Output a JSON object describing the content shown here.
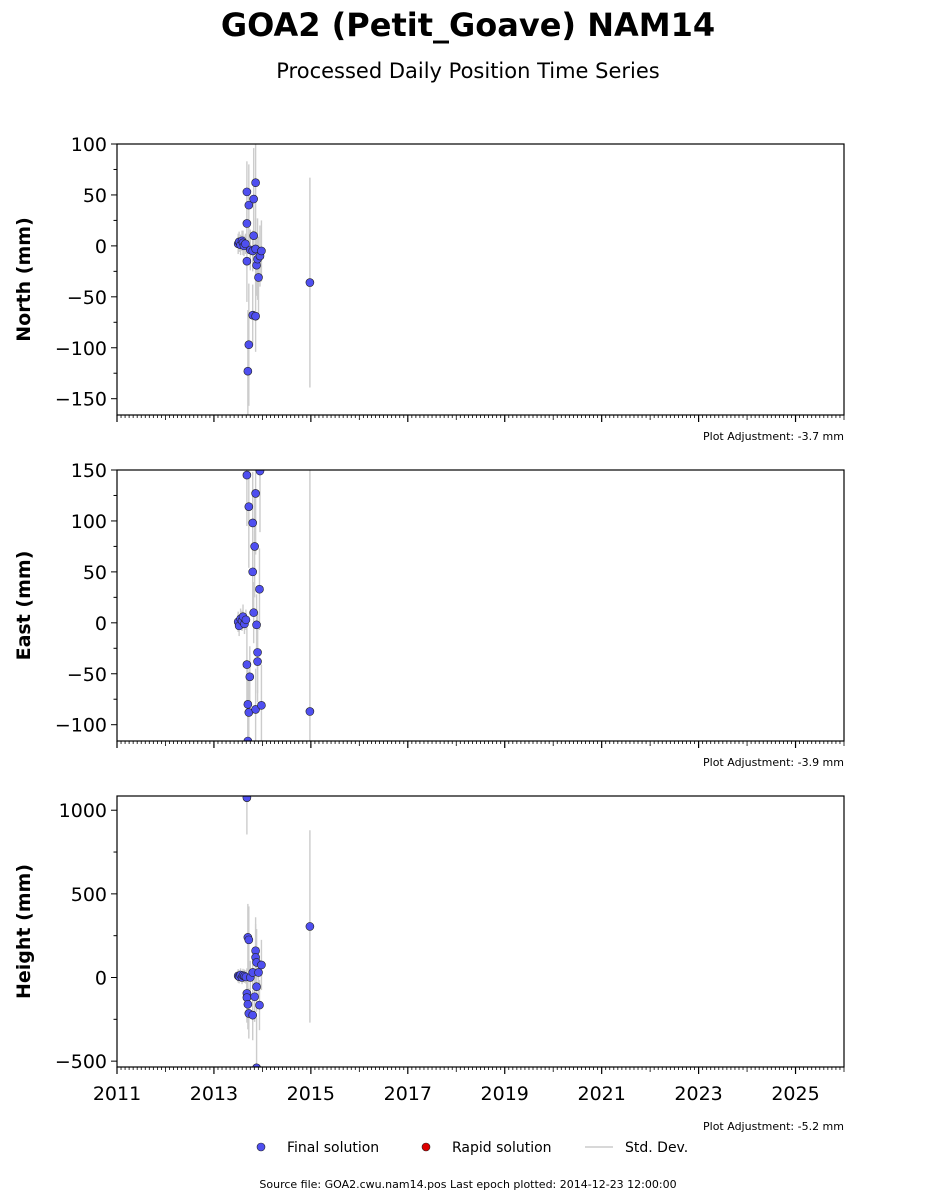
{
  "title": "GOA2 (Petit_Goave) NAM14",
  "subtitle": "Processed Daily Position Time Series",
  "footer": "Source file: GOA2.cwu.nam14.pos  Last epoch plotted: 2014-12-23 12:00:00",
  "legend": {
    "final": "Final solution",
    "rapid": "Rapid solution",
    "std": "Std. Dev."
  },
  "colors": {
    "final": "#4f4ff0",
    "rapid": "#dd0000",
    "std": "#cccccc"
  },
  "chart_data": [
    {
      "type": "scatter",
      "ylabel": "North (mm)",
      "adjustment": "Plot Adjustment: -3.7 mm",
      "xlim": [
        2011,
        2026
      ],
      "ylim": [
        -166,
        100
      ],
      "yticks": [
        100,
        50,
        0,
        -50,
        -100,
        -150
      ],
      "xticks": [
        2011,
        2013,
        2015,
        2017,
        2019,
        2021,
        2023,
        2025
      ],
      "show_xticklabels": false,
      "points": [
        {
          "x": 2013.5,
          "y": 2,
          "err": 10
        },
        {
          "x": 2013.52,
          "y": 4,
          "err": 10
        },
        {
          "x": 2013.55,
          "y": 1,
          "err": 10
        },
        {
          "x": 2013.58,
          "y": 5,
          "err": 10
        },
        {
          "x": 2013.6,
          "y": 3,
          "err": 12
        },
        {
          "x": 2013.62,
          "y": 0,
          "err": 10
        },
        {
          "x": 2013.65,
          "y": 2,
          "err": 10
        },
        {
          "x": 2013.68,
          "y": 53,
          "err": 30
        },
        {
          "x": 2013.68,
          "y": 22,
          "err": 30
        },
        {
          "x": 2013.68,
          "y": -15,
          "err": 40
        },
        {
          "x": 2013.7,
          "y": -123,
          "err": 60
        },
        {
          "x": 2013.72,
          "y": -97,
          "err": 60
        },
        {
          "x": 2013.72,
          "y": 40,
          "err": 40
        },
        {
          "x": 2013.75,
          "y": -4,
          "err": 20
        },
        {
          "x": 2013.8,
          "y": -68,
          "err": 30
        },
        {
          "x": 2013.8,
          "y": -5,
          "err": 20
        },
        {
          "x": 2013.82,
          "y": 10,
          "err": 25
        },
        {
          "x": 2013.82,
          "y": 46,
          "err": 50
        },
        {
          "x": 2013.86,
          "y": -69,
          "err": 35
        },
        {
          "x": 2013.86,
          "y": 62,
          "err": 60
        },
        {
          "x": 2013.86,
          "y": -3,
          "err": 30
        },
        {
          "x": 2013.88,
          "y": -19,
          "err": 30
        },
        {
          "x": 2013.9,
          "y": -13,
          "err": 40
        },
        {
          "x": 2013.92,
          "y": -31,
          "err": 40
        },
        {
          "x": 2013.95,
          "y": -10,
          "err": 30
        },
        {
          "x": 2013.98,
          "y": -5,
          "err": 30
        },
        {
          "x": 2014.98,
          "y": -36,
          "err": 103
        }
      ]
    },
    {
      "type": "scatter",
      "ylabel": "East (mm)",
      "adjustment": "Plot Adjustment: -3.9 mm",
      "xlim": [
        2011,
        2026
      ],
      "ylim": [
        -116,
        150
      ],
      "yticks": [
        150,
        100,
        50,
        0,
        -50,
        -100
      ],
      "xticks": [
        2011,
        2013,
        2015,
        2017,
        2019,
        2021,
        2023,
        2025
      ],
      "show_xticklabels": false,
      "points": [
        {
          "x": 2013.5,
          "y": 1,
          "err": 10
        },
        {
          "x": 2013.52,
          "y": -3,
          "err": 10
        },
        {
          "x": 2013.55,
          "y": 4,
          "err": 10
        },
        {
          "x": 2013.58,
          "y": 2,
          "err": 10
        },
        {
          "x": 2013.6,
          "y": 6,
          "err": 12
        },
        {
          "x": 2013.63,
          "y": -1,
          "err": 10
        },
        {
          "x": 2013.66,
          "y": 3,
          "err": 10
        },
        {
          "x": 2013.68,
          "y": 145,
          "err": 50
        },
        {
          "x": 2013.68,
          "y": -41,
          "err": 40
        },
        {
          "x": 2013.7,
          "y": -80,
          "err": 40
        },
        {
          "x": 2013.7,
          "y": -116,
          "err": 50
        },
        {
          "x": 2013.72,
          "y": 114,
          "err": 60
        },
        {
          "x": 2013.72,
          "y": -88,
          "err": 40
        },
        {
          "x": 2013.74,
          "y": -53,
          "err": 30
        },
        {
          "x": 2013.8,
          "y": 98,
          "err": 50
        },
        {
          "x": 2013.8,
          "y": 50,
          "err": 40
        },
        {
          "x": 2013.82,
          "y": 10,
          "err": 30
        },
        {
          "x": 2013.84,
          "y": 75,
          "err": 50
        },
        {
          "x": 2013.86,
          "y": -85,
          "err": 40
        },
        {
          "x": 2013.86,
          "y": 127,
          "err": 60
        },
        {
          "x": 2013.88,
          "y": -2,
          "err": 30
        },
        {
          "x": 2013.9,
          "y": -38,
          "err": 40
        },
        {
          "x": 2013.9,
          "y": -29,
          "err": 40
        },
        {
          "x": 2013.94,
          "y": 33,
          "err": 40
        },
        {
          "x": 2013.95,
          "y": 149,
          "err": 60
        },
        {
          "x": 2013.98,
          "y": -81,
          "err": 40
        },
        {
          "x": 2014.98,
          "y": -87,
          "err": 240
        }
      ]
    },
    {
      "type": "scatter",
      "ylabel": "Height (mm)",
      "adjustment": "Plot Adjustment: -5.2 mm",
      "xlim": [
        2011,
        2026
      ],
      "ylim": [
        -535,
        1085
      ],
      "yticks": [
        1000,
        500,
        0,
        -500
      ],
      "xticks": [
        2011,
        2013,
        2015,
        2017,
        2019,
        2021,
        2023,
        2025
      ],
      "show_xticklabels": true,
      "points": [
        {
          "x": 2013.5,
          "y": 10,
          "err": 40
        },
        {
          "x": 2013.52,
          "y": 5,
          "err": 40
        },
        {
          "x": 2013.55,
          "y": 15,
          "err": 40
        },
        {
          "x": 2013.58,
          "y": 0,
          "err": 40
        },
        {
          "x": 2013.6,
          "y": 12,
          "err": 40
        },
        {
          "x": 2013.63,
          "y": 8,
          "err": 40
        },
        {
          "x": 2013.66,
          "y": 3,
          "err": 40
        },
        {
          "x": 2013.68,
          "y": 1075,
          "err": 220
        },
        {
          "x": 2013.68,
          "y": -95,
          "err": 150
        },
        {
          "x": 2013.68,
          "y": -120,
          "err": 150
        },
        {
          "x": 2013.7,
          "y": -160,
          "err": 150
        },
        {
          "x": 2013.7,
          "y": 240,
          "err": 200
        },
        {
          "x": 2013.72,
          "y": 225,
          "err": 200
        },
        {
          "x": 2013.72,
          "y": -215,
          "err": 150
        },
        {
          "x": 2013.75,
          "y": 0,
          "err": 100
        },
        {
          "x": 2013.8,
          "y": -225,
          "err": 150
        },
        {
          "x": 2013.8,
          "y": 30,
          "err": 100
        },
        {
          "x": 2013.84,
          "y": -115,
          "err": 150
        },
        {
          "x": 2013.86,
          "y": 160,
          "err": 200
        },
        {
          "x": 2013.86,
          "y": 120,
          "err": 200
        },
        {
          "x": 2013.88,
          "y": -540,
          "err": 300
        },
        {
          "x": 2013.88,
          "y": 90,
          "err": 200
        },
        {
          "x": 2013.88,
          "y": -55,
          "err": 150
        },
        {
          "x": 2013.92,
          "y": 30,
          "err": 150
        },
        {
          "x": 2013.94,
          "y": -165,
          "err": 150
        },
        {
          "x": 2013.98,
          "y": 75,
          "err": 150
        },
        {
          "x": 2014.98,
          "y": 305,
          "err": 575
        }
      ]
    }
  ]
}
